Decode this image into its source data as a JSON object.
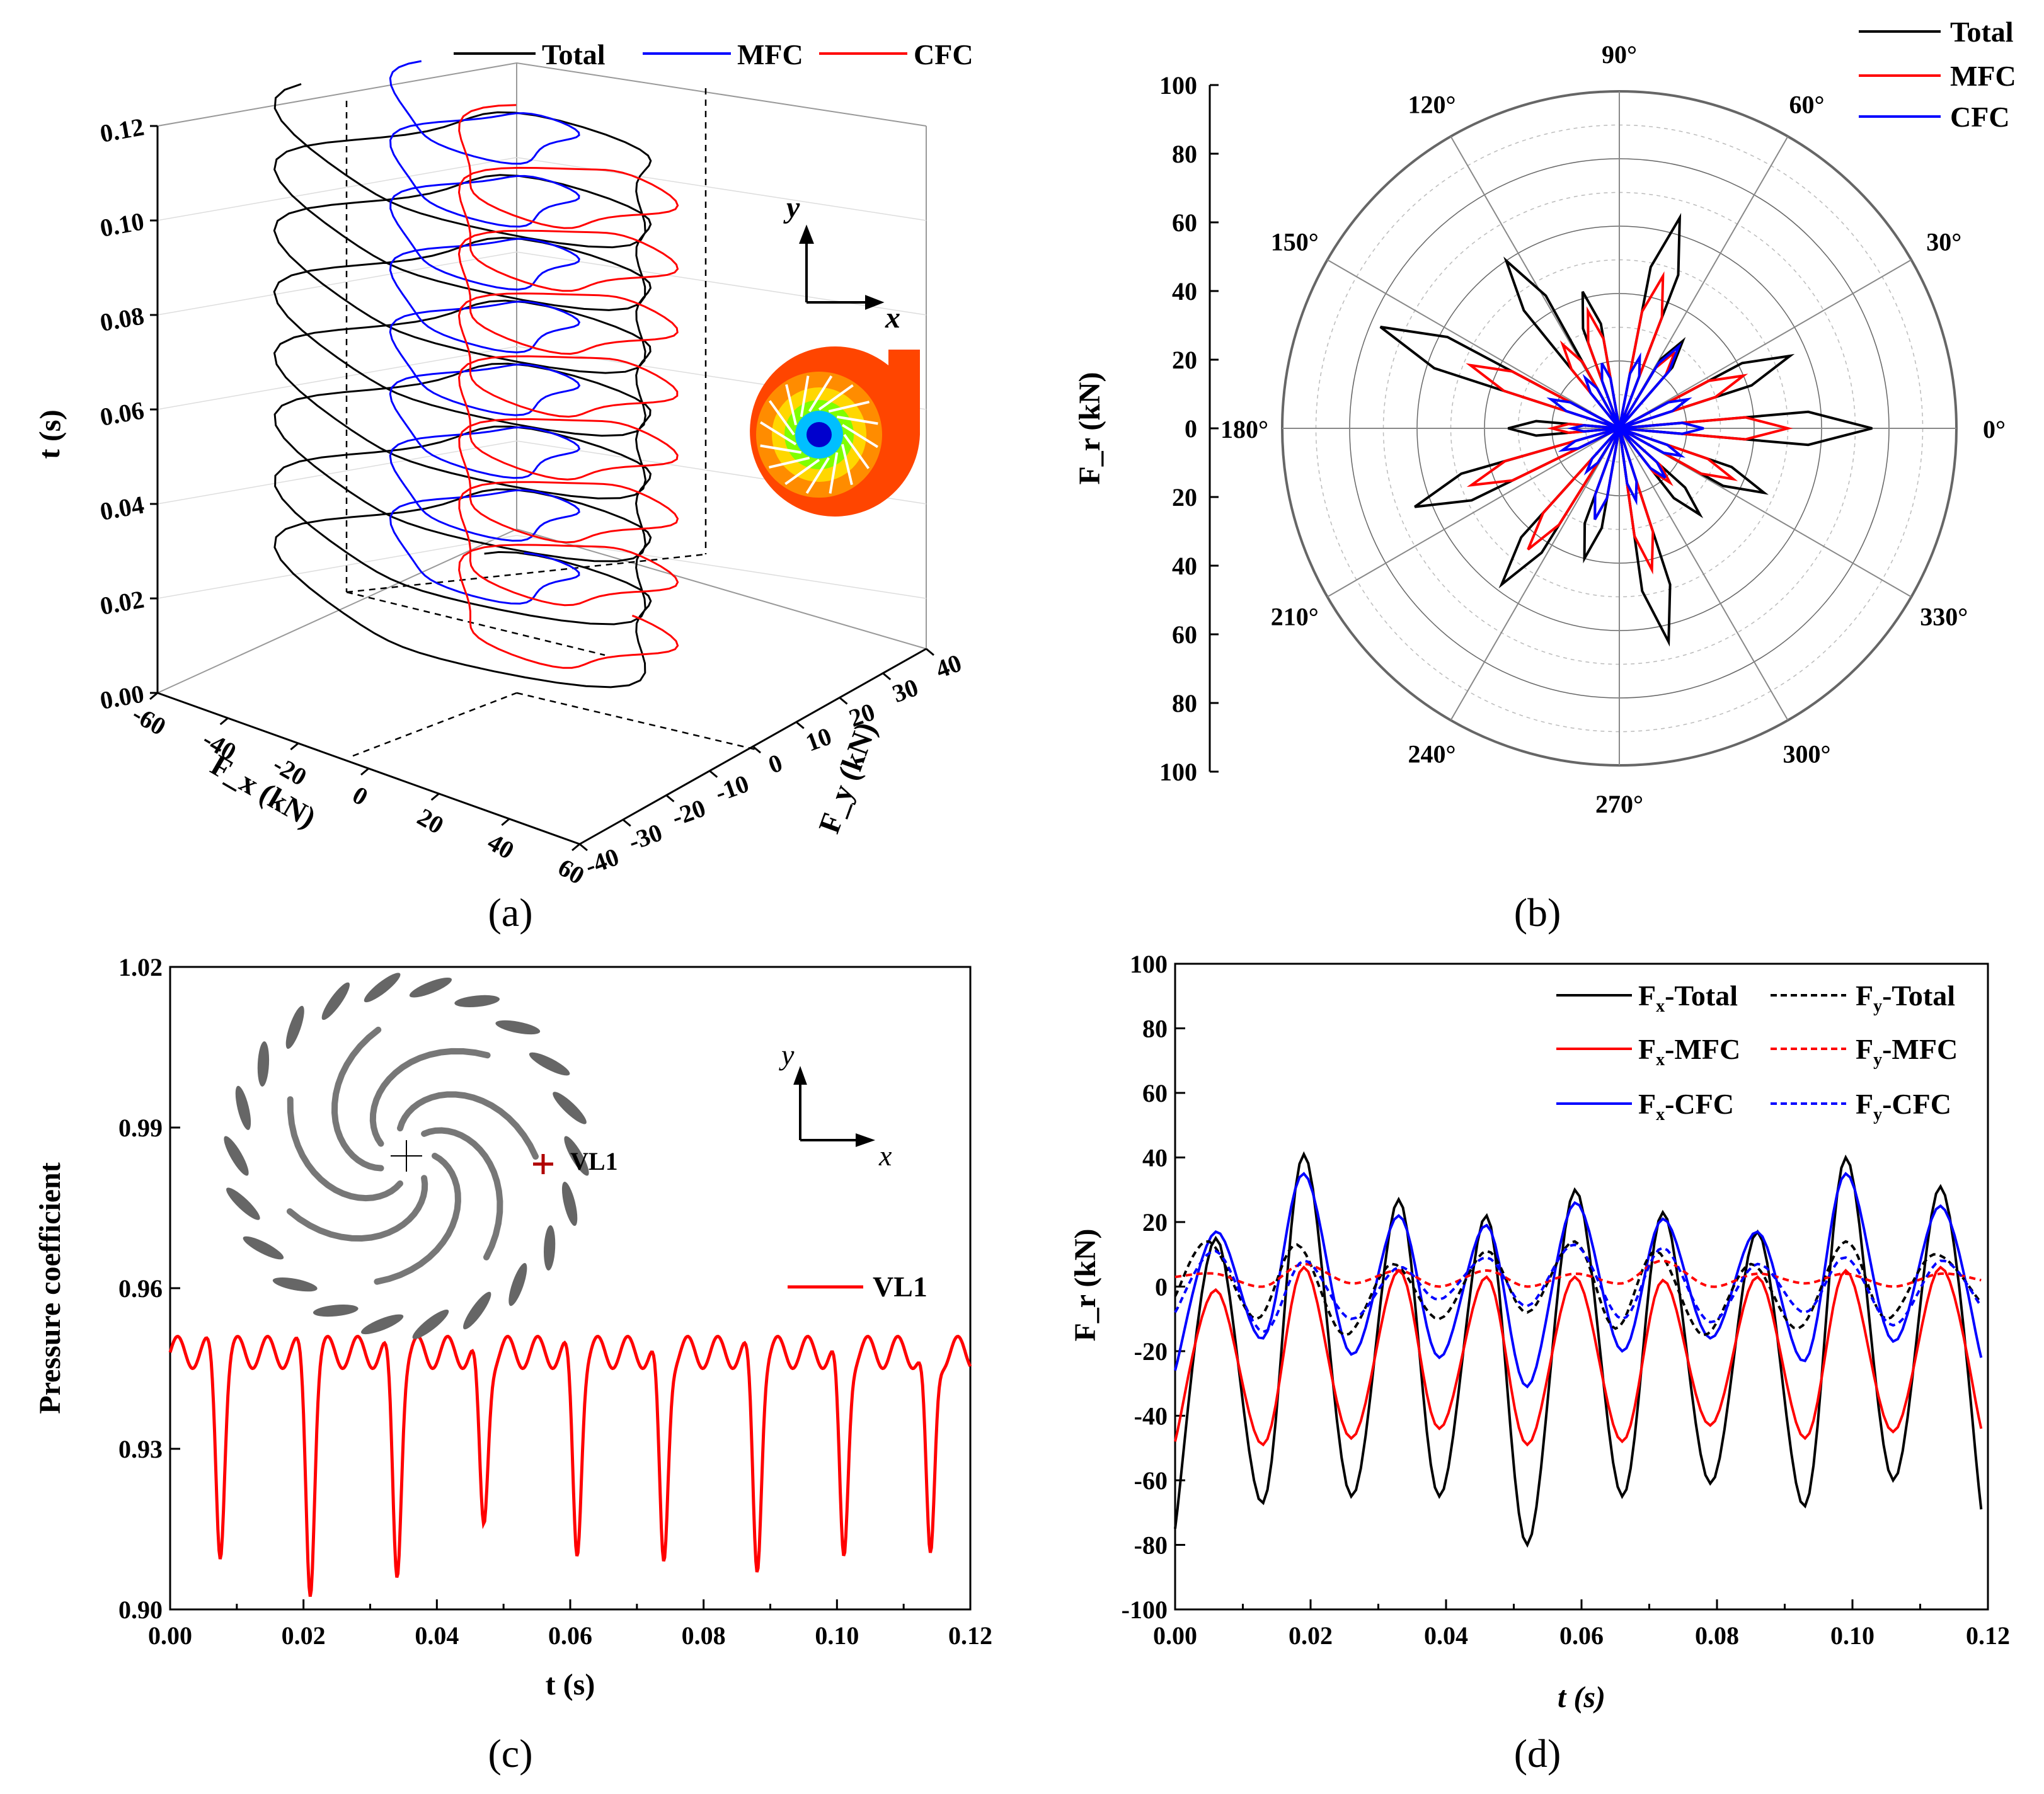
{
  "panels": {
    "a": "(a)",
    "b": "(b)",
    "c": "(c)",
    "d": "(d)"
  },
  "chart_data": [
    {
      "id": "a",
      "type": "line3d",
      "legend": [
        "Total",
        "MFC",
        "CFC"
      ],
      "colors": {
        "Total": "#000000",
        "MFC": "#0000ff",
        "CFC": "#ff0000"
      },
      "xlabel": "F_x (kN)",
      "ylabel": "F_y (kN)",
      "zlabel": "t (s)",
      "xticks": [
        "-60",
        "-40",
        "-20",
        "0",
        "20",
        "40",
        "60"
      ],
      "yticks": [
        "-40",
        "-30",
        "-20",
        "-10",
        "0",
        "10",
        "20",
        "30",
        "40"
      ],
      "zticks": [
        "0.00",
        "0.02",
        "0.04",
        "0.06",
        "0.08",
        "0.10",
        "0.12"
      ],
      "xlim": [
        -60,
        60
      ],
      "ylim": [
        -40,
        40
      ],
      "zlim": [
        0,
        0.12
      ],
      "inset_axes": {
        "x": "x",
        "y": "y"
      }
    },
    {
      "id": "b",
      "type": "polar",
      "legend": [
        "Total",
        "MFC",
        "CFC"
      ],
      "colors": {
        "Total": "#000000",
        "MFC": "#ff0000",
        "CFC": "#0000ff"
      },
      "ylabel": "F_r (kN)",
      "rlim": [
        0,
        100
      ],
      "angle_labels": [
        "0°",
        "30°",
        "60°",
        "90°",
        "120°",
        "150°",
        "180°",
        "210°",
        "240°",
        "270°",
        "300°",
        "330°"
      ],
      "radial_ticks_top": [
        "100",
        "80",
        "60",
        "40",
        "20",
        "0"
      ],
      "radial_ticks_bottom": [
        "20",
        "40",
        "60",
        "80",
        "100"
      ],
      "lobes": {
        "angles_deg": [
          0,
          23,
          54,
          74,
          105,
          124,
          157,
          180,
          201,
          233,
          255,
          283,
          313,
          336
        ],
        "Total": [
          75,
          55,
          32,
          65,
          42,
          60,
          77,
          33,
          65,
          58,
          40,
          65,
          35,
          47
        ],
        "MFC": [
          50,
          40,
          28,
          47,
          36,
          30,
          48,
          20,
          47,
          45,
          28,
          43,
          22,
          37
        ],
        "CFC": [
          25,
          22,
          30,
          22,
          20,
          18,
          22,
          14,
          18,
          16,
          28,
          22,
          20,
          20
        ]
      }
    },
    {
      "id": "c",
      "type": "line",
      "xlabel": "t (s)",
      "ylabel": "Pressure coefficient",
      "xlim": [
        0,
        0.12
      ],
      "ylim": [
        0.9,
        1.02
      ],
      "xticks": [
        "0.00",
        "0.02",
        "0.04",
        "0.06",
        "0.08",
        "0.10",
        "0.12"
      ],
      "yticks": [
        "0.90",
        "0.93",
        "0.96",
        "0.99",
        "1.02"
      ],
      "legend": [
        "VL1"
      ],
      "inset_marker": "VL1",
      "inset_axes": {
        "x": "x",
        "y": "y"
      },
      "series": [
        {
          "name": "VL1",
          "color": "#ff0000",
          "troughs_t": [
            0.0075,
            0.021,
            0.034,
            0.047,
            0.061,
            0.074,
            0.088,
            0.101,
            0.114
          ],
          "troughs_v": [
            0.912,
            0.905,
            0.907,
            0.915,
            0.911,
            0.908,
            0.908,
            0.909,
            0.908
          ],
          "baseline": 0.948
        }
      ]
    },
    {
      "id": "d",
      "type": "line",
      "xlabel": "t (s)",
      "ylabel": "F_r (kN)",
      "xlim": [
        0,
        0.12
      ],
      "ylim": [
        -100,
        100
      ],
      "xticks": [
        "0.00",
        "0.02",
        "0.04",
        "0.06",
        "0.08",
        "0.10",
        "0.12"
      ],
      "yticks": [
        "-100",
        "-80",
        "-60",
        "-40",
        "-20",
        "0",
        "20",
        "40",
        "60",
        "80",
        "100"
      ],
      "legend_labels": {
        "fx_total": [
          "F",
          "x",
          "-Total"
        ],
        "fy_total": [
          "F",
          "y",
          "-Total"
        ],
        "fx_mfc": [
          "F",
          "x",
          "-MFC"
        ],
        "fy_mfc": [
          "F",
          "y",
          "-MFC"
        ],
        "fx_cfc": [
          "F",
          "x",
          "-CFC"
        ],
        "fy_cfc": [
          "F",
          "y",
          "-CFC"
        ]
      },
      "series": [
        {
          "name": "Fx-Total",
          "color": "#000000",
          "dash": false,
          "peaks_t": [
            0.006,
            0.019,
            0.033,
            0.046,
            0.059,
            0.072,
            0.086,
            0.099,
            0.113
          ],
          "peaks_v": [
            15,
            41,
            27,
            22,
            30,
            23,
            17,
            40,
            31
          ],
          "troughs_t": [
            0.0,
            0.013,
            0.026,
            0.039,
            0.052,
            0.066,
            0.079,
            0.093,
            0.106,
            0.119
          ],
          "troughs_v": [
            -75,
            -67,
            -65,
            -65,
            -80,
            -65,
            -61,
            -68,
            -60,
            -69
          ]
        },
        {
          "name": "Fx-MFC",
          "color": "#ff0000",
          "dash": false,
          "peaks_t": [
            0.006,
            0.019,
            0.033,
            0.046,
            0.059,
            0.072,
            0.086,
            0.099,
            0.113
          ],
          "peaks_v": [
            -1,
            6,
            5,
            3,
            3,
            2,
            3,
            5,
            6
          ],
          "troughs_t": [
            0.0,
            0.013,
            0.026,
            0.039,
            0.052,
            0.066,
            0.079,
            0.093,
            0.106,
            0.119
          ],
          "troughs_v": [
            -48,
            -49,
            -47,
            -44,
            -49,
            -48,
            -43,
            -47,
            -45,
            -44
          ]
        },
        {
          "name": "Fx-CFC",
          "color": "#0000ff",
          "dash": false,
          "peaks_t": [
            0.006,
            0.019,
            0.033,
            0.046,
            0.059,
            0.072,
            0.086,
            0.099,
            0.113
          ],
          "peaks_v": [
            17,
            35,
            22,
            19,
            26,
            21,
            17,
            35,
            25
          ],
          "troughs_t": [
            0.0,
            0.013,
            0.026,
            0.039,
            0.052,
            0.066,
            0.079,
            0.093,
            0.106,
            0.119
          ],
          "troughs_v": [
            -26,
            -16,
            -21,
            -22,
            -31,
            -20,
            -16,
            -23,
            -17,
            -22
          ]
        },
        {
          "name": "Fy-Total",
          "color": "#000000",
          "dash": true,
          "peaks_t": [
            0.005,
            0.018,
            0.032,
            0.046,
            0.059,
            0.071,
            0.085,
            0.099,
            0.112
          ],
          "peaks_v": [
            14,
            13,
            7,
            11,
            14,
            11,
            7,
            14,
            10
          ],
          "troughs_t": [
            0.0,
            0.012,
            0.025,
            0.039,
            0.052,
            0.065,
            0.078,
            0.092,
            0.105,
            0.119
          ],
          "troughs_v": [
            -3,
            -10,
            -15,
            -10,
            -8,
            -13,
            -15,
            -13,
            -10,
            -5
          ]
        },
        {
          "name": "Fy-MFC",
          "color": "#ff0000",
          "dash": true,
          "peaks_t": [
            0.006,
            0.019,
            0.033,
            0.046,
            0.059,
            0.072,
            0.086,
            0.099,
            0.113
          ],
          "peaks_v": [
            4,
            7,
            5,
            5,
            4,
            8,
            4,
            4,
            4
          ],
          "troughs_t": [
            0.0,
            0.013,
            0.026,
            0.039,
            0.052,
            0.066,
            0.079,
            0.093,
            0.106,
            0.119
          ],
          "troughs_v": [
            3,
            0,
            1,
            0,
            0,
            1,
            0,
            1,
            0,
            2
          ]
        },
        {
          "name": "Fy-CFC",
          "color": "#0000ff",
          "dash": true,
          "peaks_t": [
            0.006,
            0.019,
            0.033,
            0.046,
            0.059,
            0.072,
            0.086,
            0.099,
            0.113
          ],
          "peaks_v": [
            11,
            8,
            6,
            9,
            13,
            12,
            7,
            9,
            8
          ],
          "troughs_t": [
            0.0,
            0.013,
            0.026,
            0.039,
            0.052,
            0.066,
            0.079,
            0.093,
            0.106,
            0.119
          ],
          "troughs_v": [
            -8,
            -14,
            -10,
            -4,
            -6,
            -10,
            -11,
            -8,
            -12,
            -6
          ]
        }
      ]
    }
  ]
}
